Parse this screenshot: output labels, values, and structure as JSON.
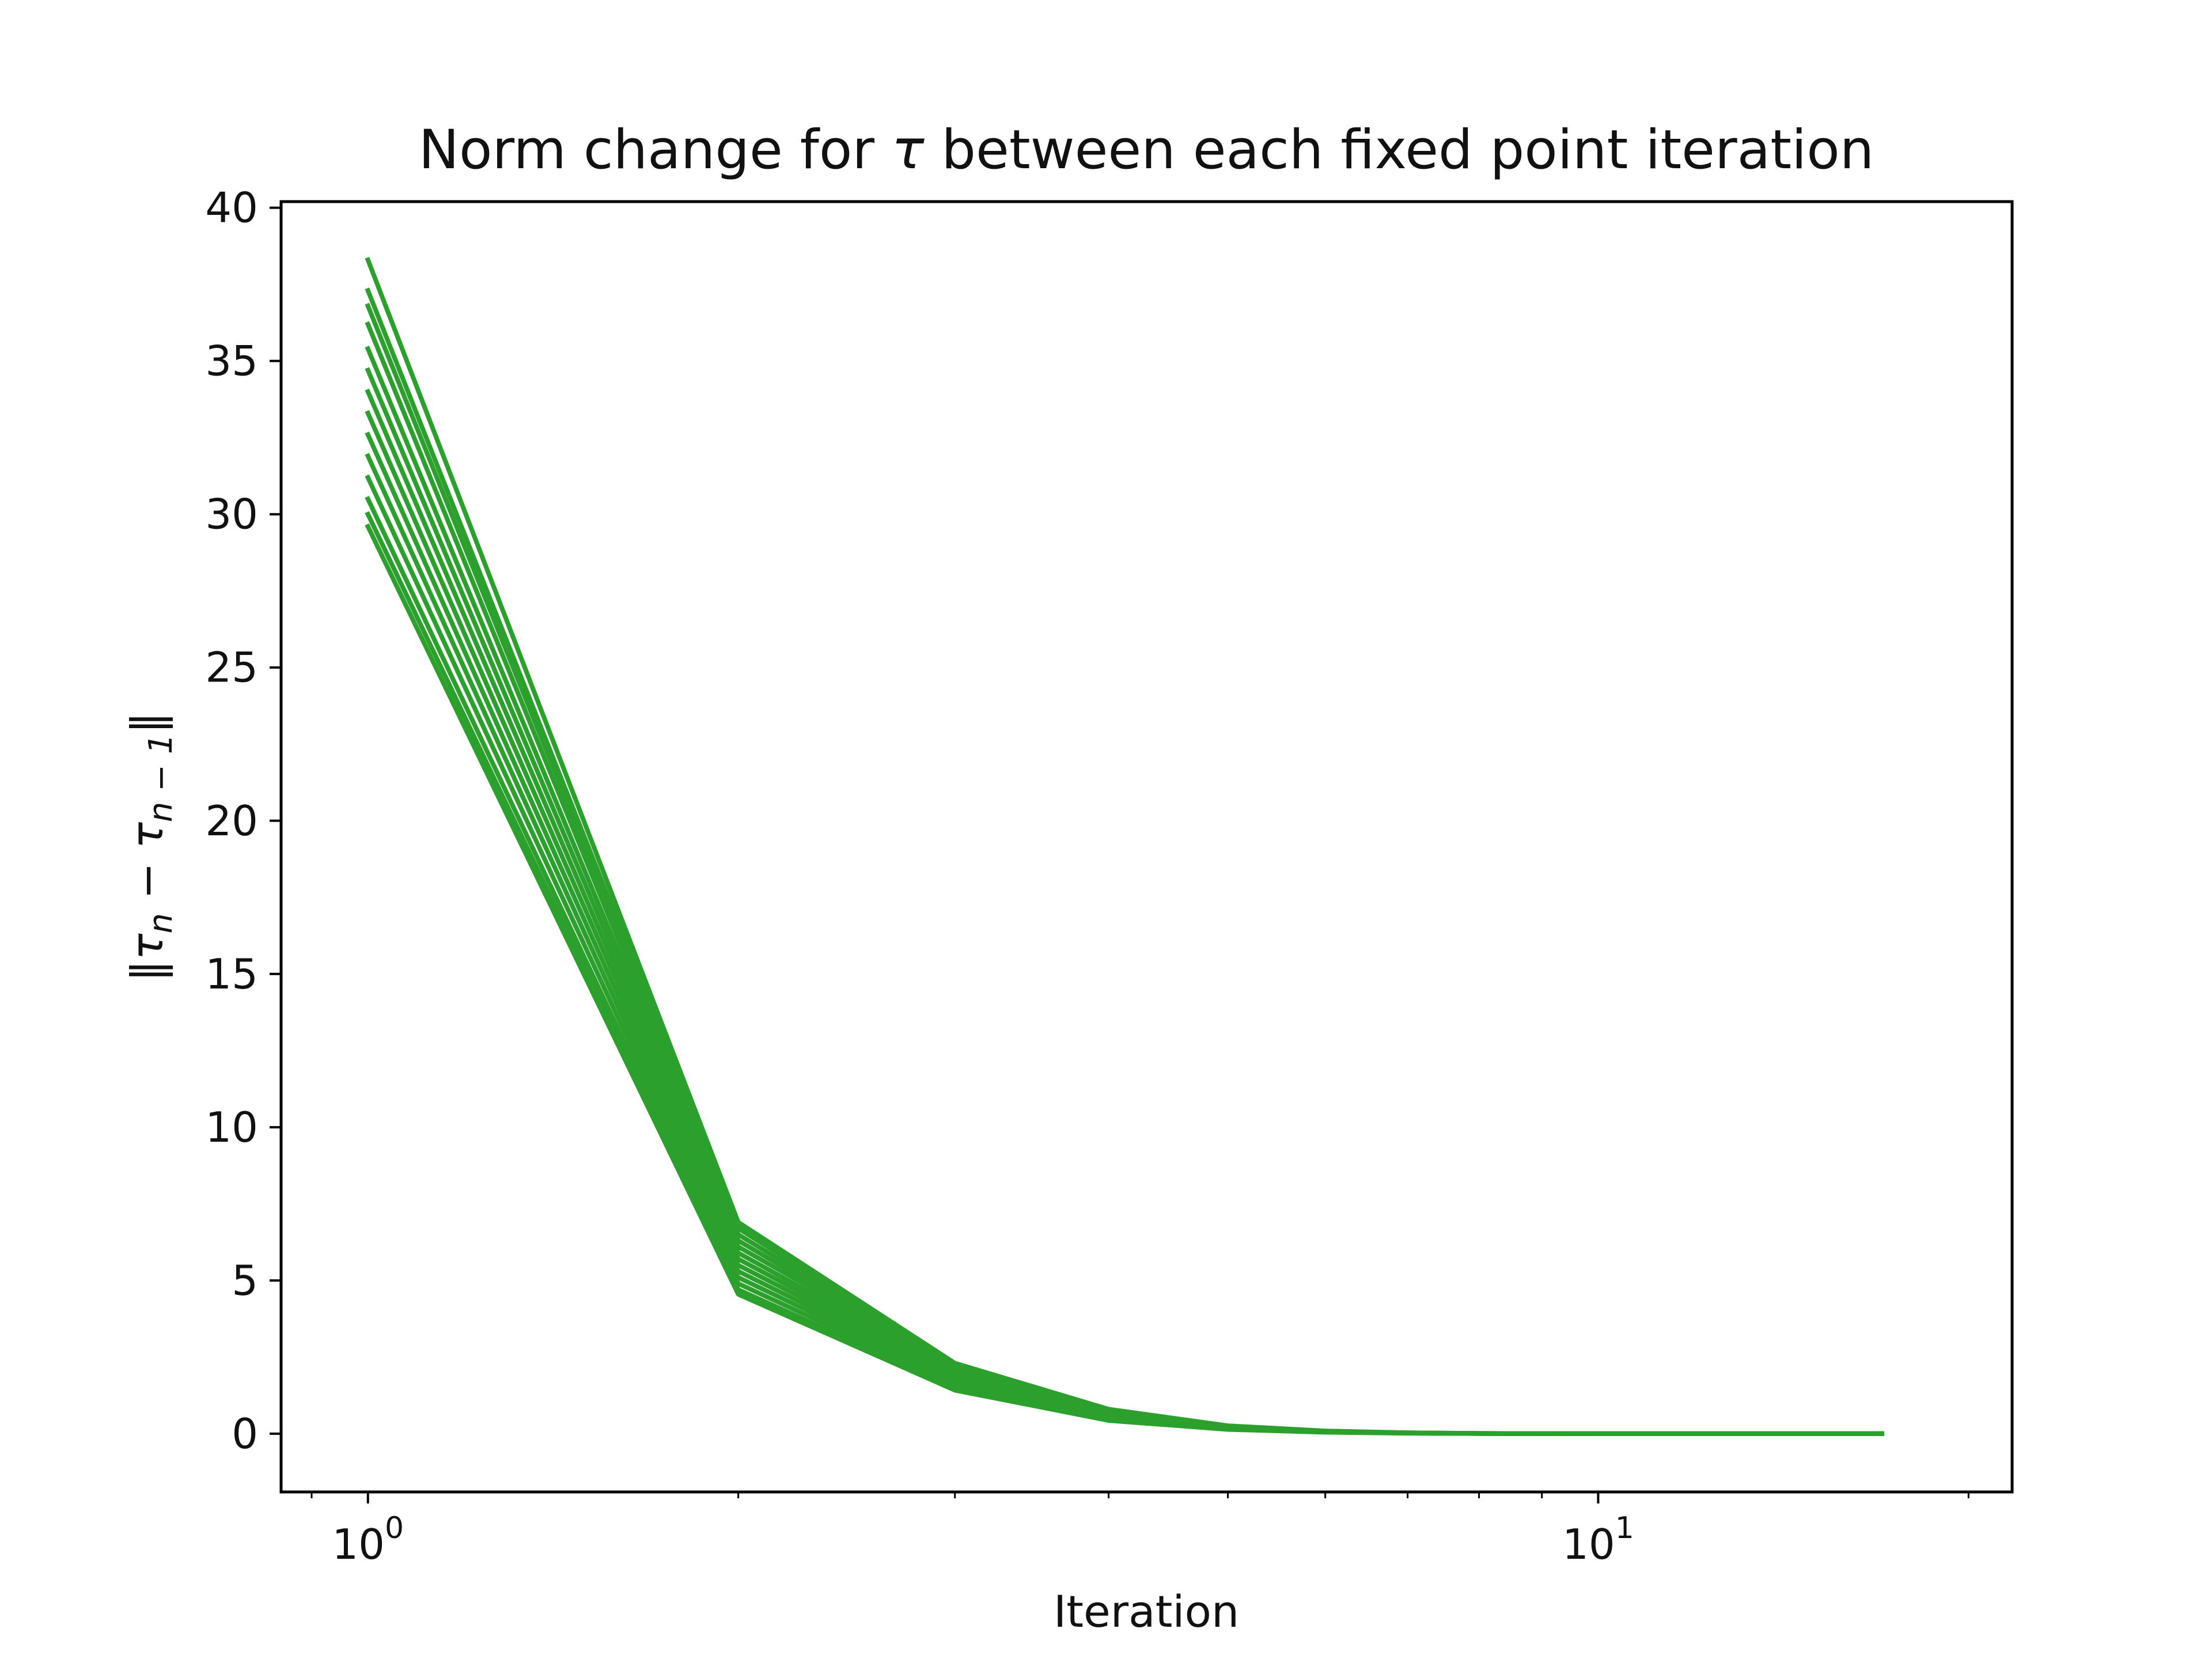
{
  "chart_data": {
    "type": "line",
    "title_parts": [
      "Norm change for ",
      "τ",
      " between each fixed point iteration"
    ],
    "xlabel": "Iteration",
    "ylabel_parts": [
      "‖",
      "τ",
      "n",
      " − ",
      "τ",
      "n − 1",
      "‖"
    ],
    "x_scale": "log",
    "xlim": [
      0.85,
      21.7
    ],
    "ylim": [
      -1.9,
      40.2
    ],
    "x_ticks_major": [
      {
        "value": 1,
        "base": "10",
        "exp": "0"
      },
      {
        "value": 10,
        "base": "10",
        "exp": "1"
      }
    ],
    "x_ticks_minor": [
      0.9,
      2,
      3,
      4,
      5,
      6,
      7,
      8,
      9,
      20
    ],
    "y_ticks": [
      "0",
      "5",
      "10",
      "15",
      "20",
      "25",
      "30",
      "35",
      "40"
    ],
    "grid": false,
    "legend": "none",
    "color": "#2ca02c",
    "x": [
      1,
      2,
      3,
      4,
      5,
      6,
      7,
      8,
      9,
      10,
      11,
      12,
      13,
      14,
      15,
      16,
      17
    ],
    "series": [
      {
        "values": [
          38.3,
          6.9,
          2.3,
          0.8,
          0.26,
          0.09,
          0.03,
          0.01,
          0.003,
          0.001,
          0.0004,
          0.0001,
          4e-05,
          1e-05,
          0,
          0,
          0
        ]
      },
      {
        "values": [
          37.3,
          6.8,
          2.28,
          0.78,
          0.25,
          0.085,
          0.028,
          0.009,
          0.003,
          0.001,
          0.0003,
          0.0001,
          0,
          0,
          0,
          0,
          0
        ]
      },
      {
        "values": [
          36.8,
          6.7,
          2.25,
          0.77,
          0.25,
          0.084,
          0.028,
          0.009,
          0.003,
          0.001,
          0.0003,
          0.0001,
          0,
          0,
          0,
          0,
          0
        ]
      },
      {
        "values": [
          36.2,
          6.5,
          2.2,
          0.75,
          0.24,
          0.08,
          0.027,
          0.009,
          0.003,
          0.001,
          0.0003,
          0.0001,
          0,
          0,
          0,
          0,
          0
        ]
      },
      {
        "values": [
          35.4,
          6.3,
          2.15,
          0.73,
          0.23,
          0.078,
          0.026,
          0.008,
          0.003,
          0.001,
          0.0003,
          0.0001,
          0,
          0,
          0,
          0,
          0
        ]
      },
      {
        "values": [
          34.7,
          6.1,
          2.1,
          0.7,
          0.22,
          0.075,
          0.025,
          0.008,
          0.003,
          0.001,
          0.0003,
          0.0001,
          0,
          0,
          0,
          0,
          0
        ]
      },
      {
        "values": [
          34.0,
          5.9,
          2.0,
          0.67,
          0.21,
          0.072,
          0.024,
          0.008,
          0.003,
          0.001,
          0.0003,
          0.0001,
          0,
          0,
          0,
          0,
          0
        ]
      },
      {
        "values": [
          33.3,
          5.7,
          1.95,
          0.64,
          0.2,
          0.069,
          0.023,
          0.007,
          0.002,
          0.001,
          0.0003,
          0.0001,
          0,
          0,
          0,
          0,
          0
        ]
      },
      {
        "values": [
          32.6,
          5.5,
          1.88,
          0.61,
          0.19,
          0.066,
          0.022,
          0.007,
          0.002,
          0.001,
          0.0003,
          0.0001,
          0,
          0,
          0,
          0,
          0
        ]
      },
      {
        "values": [
          31.9,
          5.3,
          1.8,
          0.58,
          0.18,
          0.063,
          0.021,
          0.007,
          0.002,
          0.001,
          0.0003,
          0.0001,
          0,
          0,
          0,
          0,
          0
        ]
      },
      {
        "values": [
          31.2,
          5.1,
          1.72,
          0.55,
          0.17,
          0.06,
          0.02,
          0.006,
          0.002,
          0.001,
          0.0002,
          0.0001,
          0,
          0,
          0,
          0,
          0
        ]
      },
      {
        "values": [
          30.5,
          4.9,
          1.62,
          0.51,
          0.16,
          0.056,
          0.019,
          0.006,
          0.002,
          0.0006,
          0.0002,
          0.0001,
          0,
          0,
          0,
          0,
          0
        ]
      },
      {
        "values": [
          30.0,
          4.7,
          1.52,
          0.47,
          0.15,
          0.052,
          0.018,
          0.006,
          0.002,
          0.0006,
          0.0002,
          0.0001,
          0,
          0,
          0,
          0,
          0
        ]
      },
      {
        "values": [
          29.6,
          4.55,
          1.42,
          0.43,
          0.14,
          0.048,
          0.016,
          0.005,
          0.002,
          0.0005,
          0.0002,
          0.0001,
          0,
          0,
          0,
          0,
          0
        ]
      }
    ]
  }
}
